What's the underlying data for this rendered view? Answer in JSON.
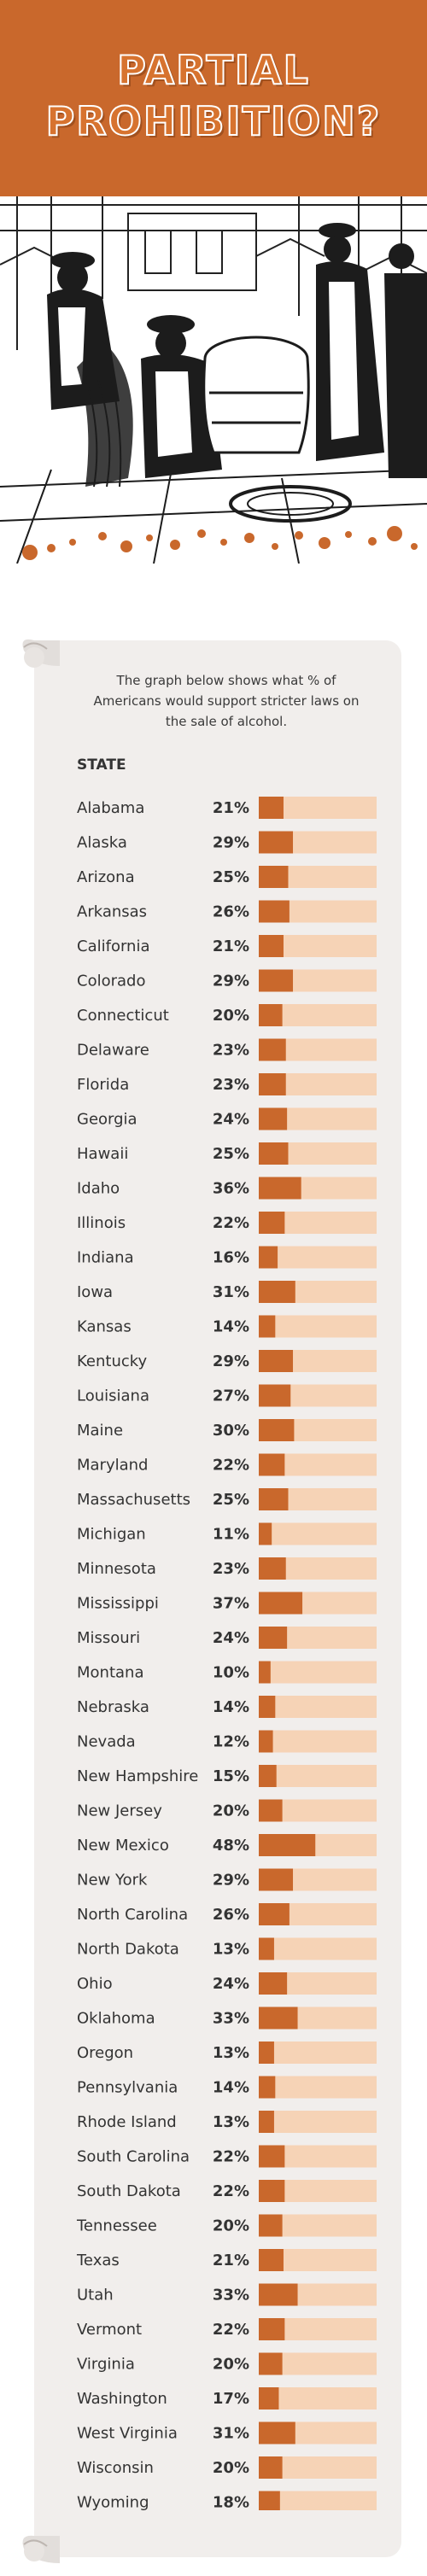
{
  "header": {
    "title_line1": "PARTIAL",
    "title_line2": "PROHIBITION?"
  },
  "intro": {
    "text": "The graph below shows what % of Americans would support stricter laws on the sale of alcohol."
  },
  "colors": {
    "orange": "#c9682c",
    "bar_track": "#f6d3b6",
    "scroll_paper": "#f1eeec"
  },
  "chart_data": {
    "type": "bar",
    "orientation": "horizontal",
    "header_label": "STATE",
    "value_unit": "%",
    "xlim": [
      0,
      100
    ],
    "categories": [
      "Alabama",
      "Alaska",
      "Arizona",
      "Arkansas",
      "California",
      "Colorado",
      "Connecticut",
      "Delaware",
      "Florida",
      "Georgia",
      "Hawaii",
      "Idaho",
      "Illinois",
      "Indiana",
      "Iowa",
      "Kansas",
      "Kentucky",
      "Louisiana",
      "Maine",
      "Maryland",
      "Massachusetts",
      "Michigan",
      "Minnesota",
      "Mississippi",
      "Missouri",
      "Montana",
      "Nebraska",
      "Nevada",
      "New Hampshire",
      "New Jersey",
      "New Mexico",
      "New York",
      "North Carolina",
      "North Dakota",
      "Ohio",
      "Oklahoma",
      "Oregon",
      "Pennsylvania",
      "Rhode Island",
      "South Carolina",
      "South Dakota",
      "Tennessee",
      "Texas",
      "Utah",
      "Vermont",
      "Virginia",
      "Washington",
      "West Virginia",
      "Wisconsin",
      "Wyoming"
    ],
    "values": [
      21,
      29,
      25,
      26,
      21,
      29,
      20,
      23,
      23,
      24,
      25,
      36,
      22,
      16,
      31,
      14,
      29,
      27,
      30,
      22,
      25,
      11,
      23,
      37,
      24,
      10,
      14,
      12,
      15,
      20,
      48,
      29,
      26,
      13,
      24,
      33,
      13,
      14,
      13,
      22,
      22,
      20,
      21,
      33,
      22,
      20,
      17,
      31,
      20,
      18
    ],
    "value_labels": [
      "21%",
      "29%",
      "25%",
      "26%",
      "21%",
      "29%",
      "20%",
      "23%",
      "23%",
      "24%",
      "25%",
      "36%",
      "22%",
      "16%",
      "31%",
      "14%",
      "29%",
      "27%",
      "30%",
      "22%",
      "25%",
      "11%",
      "23%",
      "37%",
      "24%",
      "10%",
      "14%",
      "12%",
      "15%",
      "20%",
      "48%",
      "29%",
      "26%",
      "13%",
      "24%",
      "33%",
      "13%",
      "14%",
      "13%",
      "22%",
      "22%",
      "20%",
      "21%",
      "33%",
      "22%",
      "20%",
      "17%",
      "31%",
      "20%",
      "18%"
    ]
  }
}
